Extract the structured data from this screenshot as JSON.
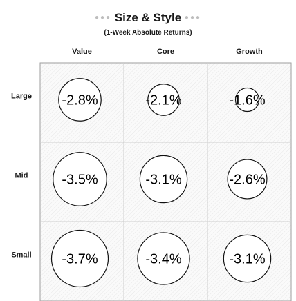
{
  "chart_data": {
    "type": "heatmap",
    "title": "Size & Style",
    "subtitle": "(1-Week Absolute Returns)",
    "columns": [
      "Value",
      "Core",
      "Growth"
    ],
    "rows": [
      "Large",
      "Mid",
      "Small"
    ],
    "values": [
      [
        -2.8,
        -2.1,
        -1.6
      ],
      [
        -3.5,
        -3.1,
        -2.6
      ],
      [
        -3.7,
        -3.4,
        -3.1
      ]
    ],
    "labels": [
      [
        "-2.8%",
        "-2.1%",
        "-1.6%"
      ],
      [
        "-3.5%",
        "-3.1%",
        "-2.6%"
      ],
      [
        "-3.7%",
        "-3.4%",
        "-3.1%"
      ]
    ],
    "unit": "%",
    "encoding": "circle-size"
  }
}
